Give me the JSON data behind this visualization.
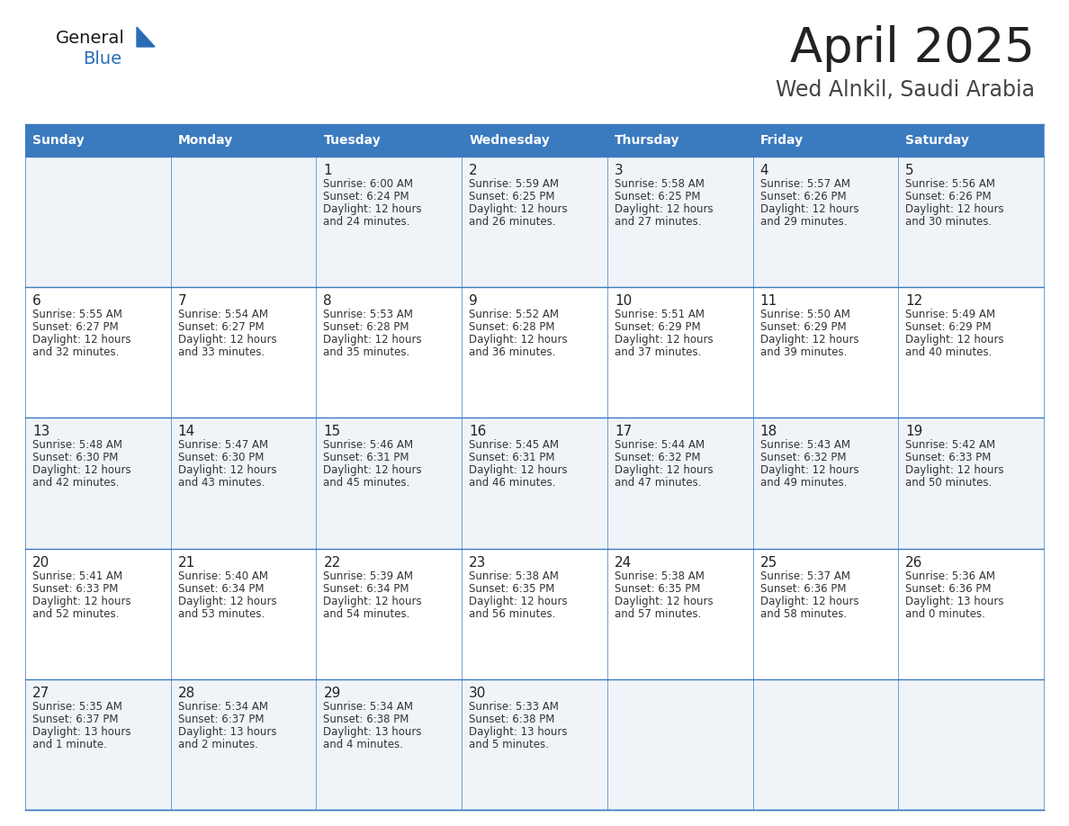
{
  "title": "April 2025",
  "subtitle": "Wed Alnkil, Saudi Arabia",
  "days_of_week": [
    "Sunday",
    "Monday",
    "Tuesday",
    "Wednesday",
    "Thursday",
    "Friday",
    "Saturday"
  ],
  "header_bg": "#3a7abf",
  "header_text": "#ffffff",
  "row_bg_odd": "#f0f4f8",
  "row_bg_even": "#ffffff",
  "cell_text_color": "#333333",
  "day_num_color": "#222222",
  "title_color": "#222222",
  "subtitle_color": "#444444",
  "grid_line_color": "#3a7abf",
  "logo_general_color": "#1a1a1a",
  "logo_blue_color": "#2a6db5",
  "calendar_data": [
    [
      {
        "day": null,
        "sunrise": null,
        "sunset": null,
        "daylight": null
      },
      {
        "day": null,
        "sunrise": null,
        "sunset": null,
        "daylight": null
      },
      {
        "day": 1,
        "sunrise": "6:00 AM",
        "sunset": "6:24 PM",
        "daylight": "12 hours",
        "daylight2": "and 24 minutes."
      },
      {
        "day": 2,
        "sunrise": "5:59 AM",
        "sunset": "6:25 PM",
        "daylight": "12 hours",
        "daylight2": "and 26 minutes."
      },
      {
        "day": 3,
        "sunrise": "5:58 AM",
        "sunset": "6:25 PM",
        "daylight": "12 hours",
        "daylight2": "and 27 minutes."
      },
      {
        "day": 4,
        "sunrise": "5:57 AM",
        "sunset": "6:26 PM",
        "daylight": "12 hours",
        "daylight2": "and 29 minutes."
      },
      {
        "day": 5,
        "sunrise": "5:56 AM",
        "sunset": "6:26 PM",
        "daylight": "12 hours",
        "daylight2": "and 30 minutes."
      }
    ],
    [
      {
        "day": 6,
        "sunrise": "5:55 AM",
        "sunset": "6:27 PM",
        "daylight": "12 hours",
        "daylight2": "and 32 minutes."
      },
      {
        "day": 7,
        "sunrise": "5:54 AM",
        "sunset": "6:27 PM",
        "daylight": "12 hours",
        "daylight2": "and 33 minutes."
      },
      {
        "day": 8,
        "sunrise": "5:53 AM",
        "sunset": "6:28 PM",
        "daylight": "12 hours",
        "daylight2": "and 35 minutes."
      },
      {
        "day": 9,
        "sunrise": "5:52 AM",
        "sunset": "6:28 PM",
        "daylight": "12 hours",
        "daylight2": "and 36 minutes."
      },
      {
        "day": 10,
        "sunrise": "5:51 AM",
        "sunset": "6:29 PM",
        "daylight": "12 hours",
        "daylight2": "and 37 minutes."
      },
      {
        "day": 11,
        "sunrise": "5:50 AM",
        "sunset": "6:29 PM",
        "daylight": "12 hours",
        "daylight2": "and 39 minutes."
      },
      {
        "day": 12,
        "sunrise": "5:49 AM",
        "sunset": "6:29 PM",
        "daylight": "12 hours",
        "daylight2": "and 40 minutes."
      }
    ],
    [
      {
        "day": 13,
        "sunrise": "5:48 AM",
        "sunset": "6:30 PM",
        "daylight": "12 hours",
        "daylight2": "and 42 minutes."
      },
      {
        "day": 14,
        "sunrise": "5:47 AM",
        "sunset": "6:30 PM",
        "daylight": "12 hours",
        "daylight2": "and 43 minutes."
      },
      {
        "day": 15,
        "sunrise": "5:46 AM",
        "sunset": "6:31 PM",
        "daylight": "12 hours",
        "daylight2": "and 45 minutes."
      },
      {
        "day": 16,
        "sunrise": "5:45 AM",
        "sunset": "6:31 PM",
        "daylight": "12 hours",
        "daylight2": "and 46 minutes."
      },
      {
        "day": 17,
        "sunrise": "5:44 AM",
        "sunset": "6:32 PM",
        "daylight": "12 hours",
        "daylight2": "and 47 minutes."
      },
      {
        "day": 18,
        "sunrise": "5:43 AM",
        "sunset": "6:32 PM",
        "daylight": "12 hours",
        "daylight2": "and 49 minutes."
      },
      {
        "day": 19,
        "sunrise": "5:42 AM",
        "sunset": "6:33 PM",
        "daylight": "12 hours",
        "daylight2": "and 50 minutes."
      }
    ],
    [
      {
        "day": 20,
        "sunrise": "5:41 AM",
        "sunset": "6:33 PM",
        "daylight": "12 hours",
        "daylight2": "and 52 minutes."
      },
      {
        "day": 21,
        "sunrise": "5:40 AM",
        "sunset": "6:34 PM",
        "daylight": "12 hours",
        "daylight2": "and 53 minutes."
      },
      {
        "day": 22,
        "sunrise": "5:39 AM",
        "sunset": "6:34 PM",
        "daylight": "12 hours",
        "daylight2": "and 54 minutes."
      },
      {
        "day": 23,
        "sunrise": "5:38 AM",
        "sunset": "6:35 PM",
        "daylight": "12 hours",
        "daylight2": "and 56 minutes."
      },
      {
        "day": 24,
        "sunrise": "5:38 AM",
        "sunset": "6:35 PM",
        "daylight": "12 hours",
        "daylight2": "and 57 minutes."
      },
      {
        "day": 25,
        "sunrise": "5:37 AM",
        "sunset": "6:36 PM",
        "daylight": "12 hours",
        "daylight2": "and 58 minutes."
      },
      {
        "day": 26,
        "sunrise": "5:36 AM",
        "sunset": "6:36 PM",
        "daylight": "13 hours",
        "daylight2": "and 0 minutes."
      }
    ],
    [
      {
        "day": 27,
        "sunrise": "5:35 AM",
        "sunset": "6:37 PM",
        "daylight": "13 hours",
        "daylight2": "and 1 minute."
      },
      {
        "day": 28,
        "sunrise": "5:34 AM",
        "sunset": "6:37 PM",
        "daylight": "13 hours",
        "daylight2": "and 2 minutes."
      },
      {
        "day": 29,
        "sunrise": "5:34 AM",
        "sunset": "6:38 PM",
        "daylight": "13 hours",
        "daylight2": "and 4 minutes."
      },
      {
        "day": 30,
        "sunrise": "5:33 AM",
        "sunset": "6:38 PM",
        "daylight": "13 hours",
        "daylight2": "and 5 minutes."
      },
      {
        "day": null,
        "sunrise": null,
        "sunset": null,
        "daylight": null,
        "daylight2": null
      },
      {
        "day": null,
        "sunrise": null,
        "sunset": null,
        "daylight": null,
        "daylight2": null
      },
      {
        "day": null,
        "sunrise": null,
        "sunset": null,
        "daylight": null,
        "daylight2": null
      }
    ]
  ]
}
